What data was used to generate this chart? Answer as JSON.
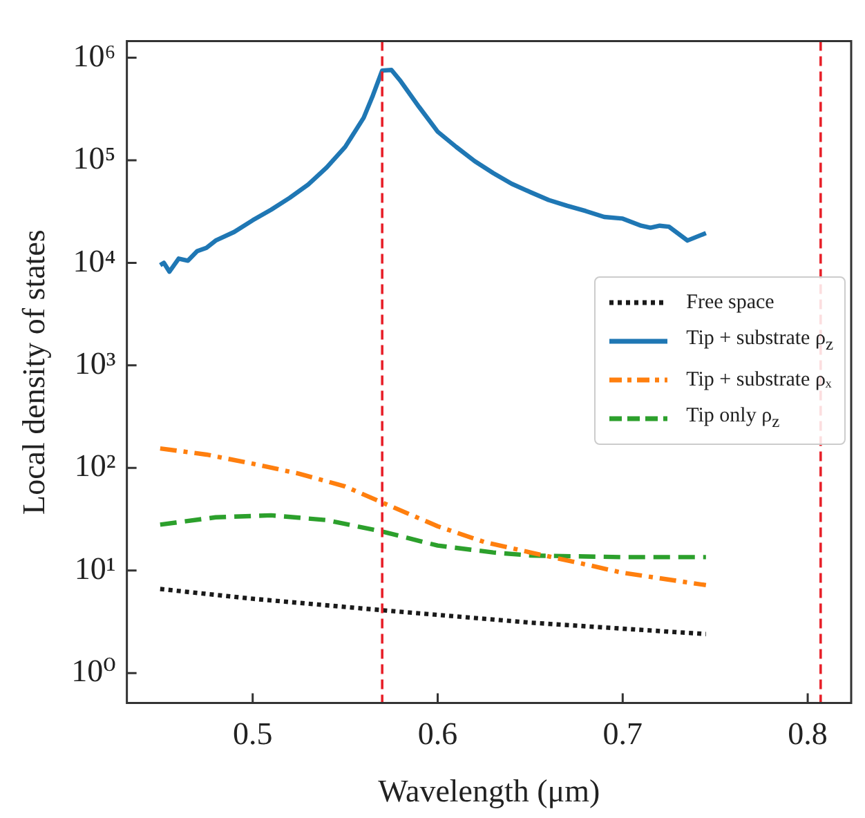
{
  "chart_data": {
    "type": "line",
    "xlabel": "Wavelength (μm)",
    "ylabel": "Local density of states",
    "log": "y",
    "grid": false,
    "legend": "center right",
    "marker": "none",
    "xlim": [
      0.432,
      0.8235
    ],
    "xticks": [
      0.5,
      0.6,
      0.7,
      0.8
    ],
    "ylim": [
      0.51,
      1450000
    ],
    "yticks": [
      {
        "value": 1,
        "label": "10⁰"
      },
      {
        "value": 10,
        "label": "10¹"
      },
      {
        "value": 100,
        "label": "10²"
      },
      {
        "value": 1000,
        "label": "10³"
      },
      {
        "value": 10000,
        "label": "10⁴"
      },
      {
        "value": 100000,
        "label": "10⁵"
      },
      {
        "value": 1000000,
        "label": "10⁶"
      }
    ],
    "series": [
      {
        "name": "Free space",
        "color": "#1a1a1a",
        "line_style": "dotted",
        "x": [
          0.45,
          0.5,
          0.57,
          0.65,
          0.745
        ],
        "values": [
          6.6,
          5.3,
          4.1,
          3.1,
          2.4
        ]
      },
      {
        "name": "Tip + substrate ρ$_{z}$",
        "color": "#1f77b4",
        "line_style": "solid",
        "x": [
          0.45,
          0.452,
          0.455,
          0.46,
          0.465,
          0.47,
          0.475,
          0.48,
          0.49,
          0.5,
          0.51,
          0.52,
          0.53,
          0.54,
          0.55,
          0.56,
          0.565,
          0.57,
          0.575,
          0.58,
          0.59,
          0.6,
          0.61,
          0.62,
          0.63,
          0.64,
          0.65,
          0.66,
          0.67,
          0.68,
          0.69,
          0.7,
          0.71,
          0.715,
          0.72,
          0.725,
          0.735,
          0.745
        ],
        "values": [
          9500,
          10000,
          8200,
          11000,
          10500,
          13000,
          14000,
          16500,
          20000,
          26000,
          33000,
          43000,
          58000,
          85000,
          135000,
          260000,
          430000,
          750000,
          760000,
          590000,
          330000,
          190000,
          135000,
          98000,
          75000,
          59000,
          49000,
          41000,
          36000,
          32000,
          28000,
          27000,
          23000,
          22000,
          23000,
          22500,
          16500,
          19500
        ]
      },
      {
        "name": "Tip + substrate ρₓ",
        "color": "#ff7f0e",
        "line_style": "dashdot",
        "x": [
          0.45,
          0.475,
          0.5,
          0.525,
          0.55,
          0.57,
          0.6,
          0.625,
          0.65,
          0.675,
          0.7,
          0.745
        ],
        "values": [
          155,
          135,
          110,
          88,
          66,
          46,
          27,
          19,
          15,
          12,
          9.5,
          7.2
        ]
      },
      {
        "name": "Tip only ρ$_{z}$",
        "color": "#2ca02c",
        "line_style": "dashed",
        "x": [
          0.45,
          0.48,
          0.51,
          0.54,
          0.57,
          0.6,
          0.63,
          0.65,
          0.7,
          0.745
        ],
        "values": [
          28,
          33,
          34.5,
          31,
          24,
          17.5,
          15,
          14,
          13.5,
          13.5
        ]
      }
    ],
    "ref_lines": [
      {
        "axis": "x",
        "value": 0.57,
        "color": "#e8212a",
        "line_style": "dashed"
      },
      {
        "axis": "x",
        "value": 0.807,
        "color": "#e8212a",
        "line_style": "dashed"
      }
    ]
  }
}
